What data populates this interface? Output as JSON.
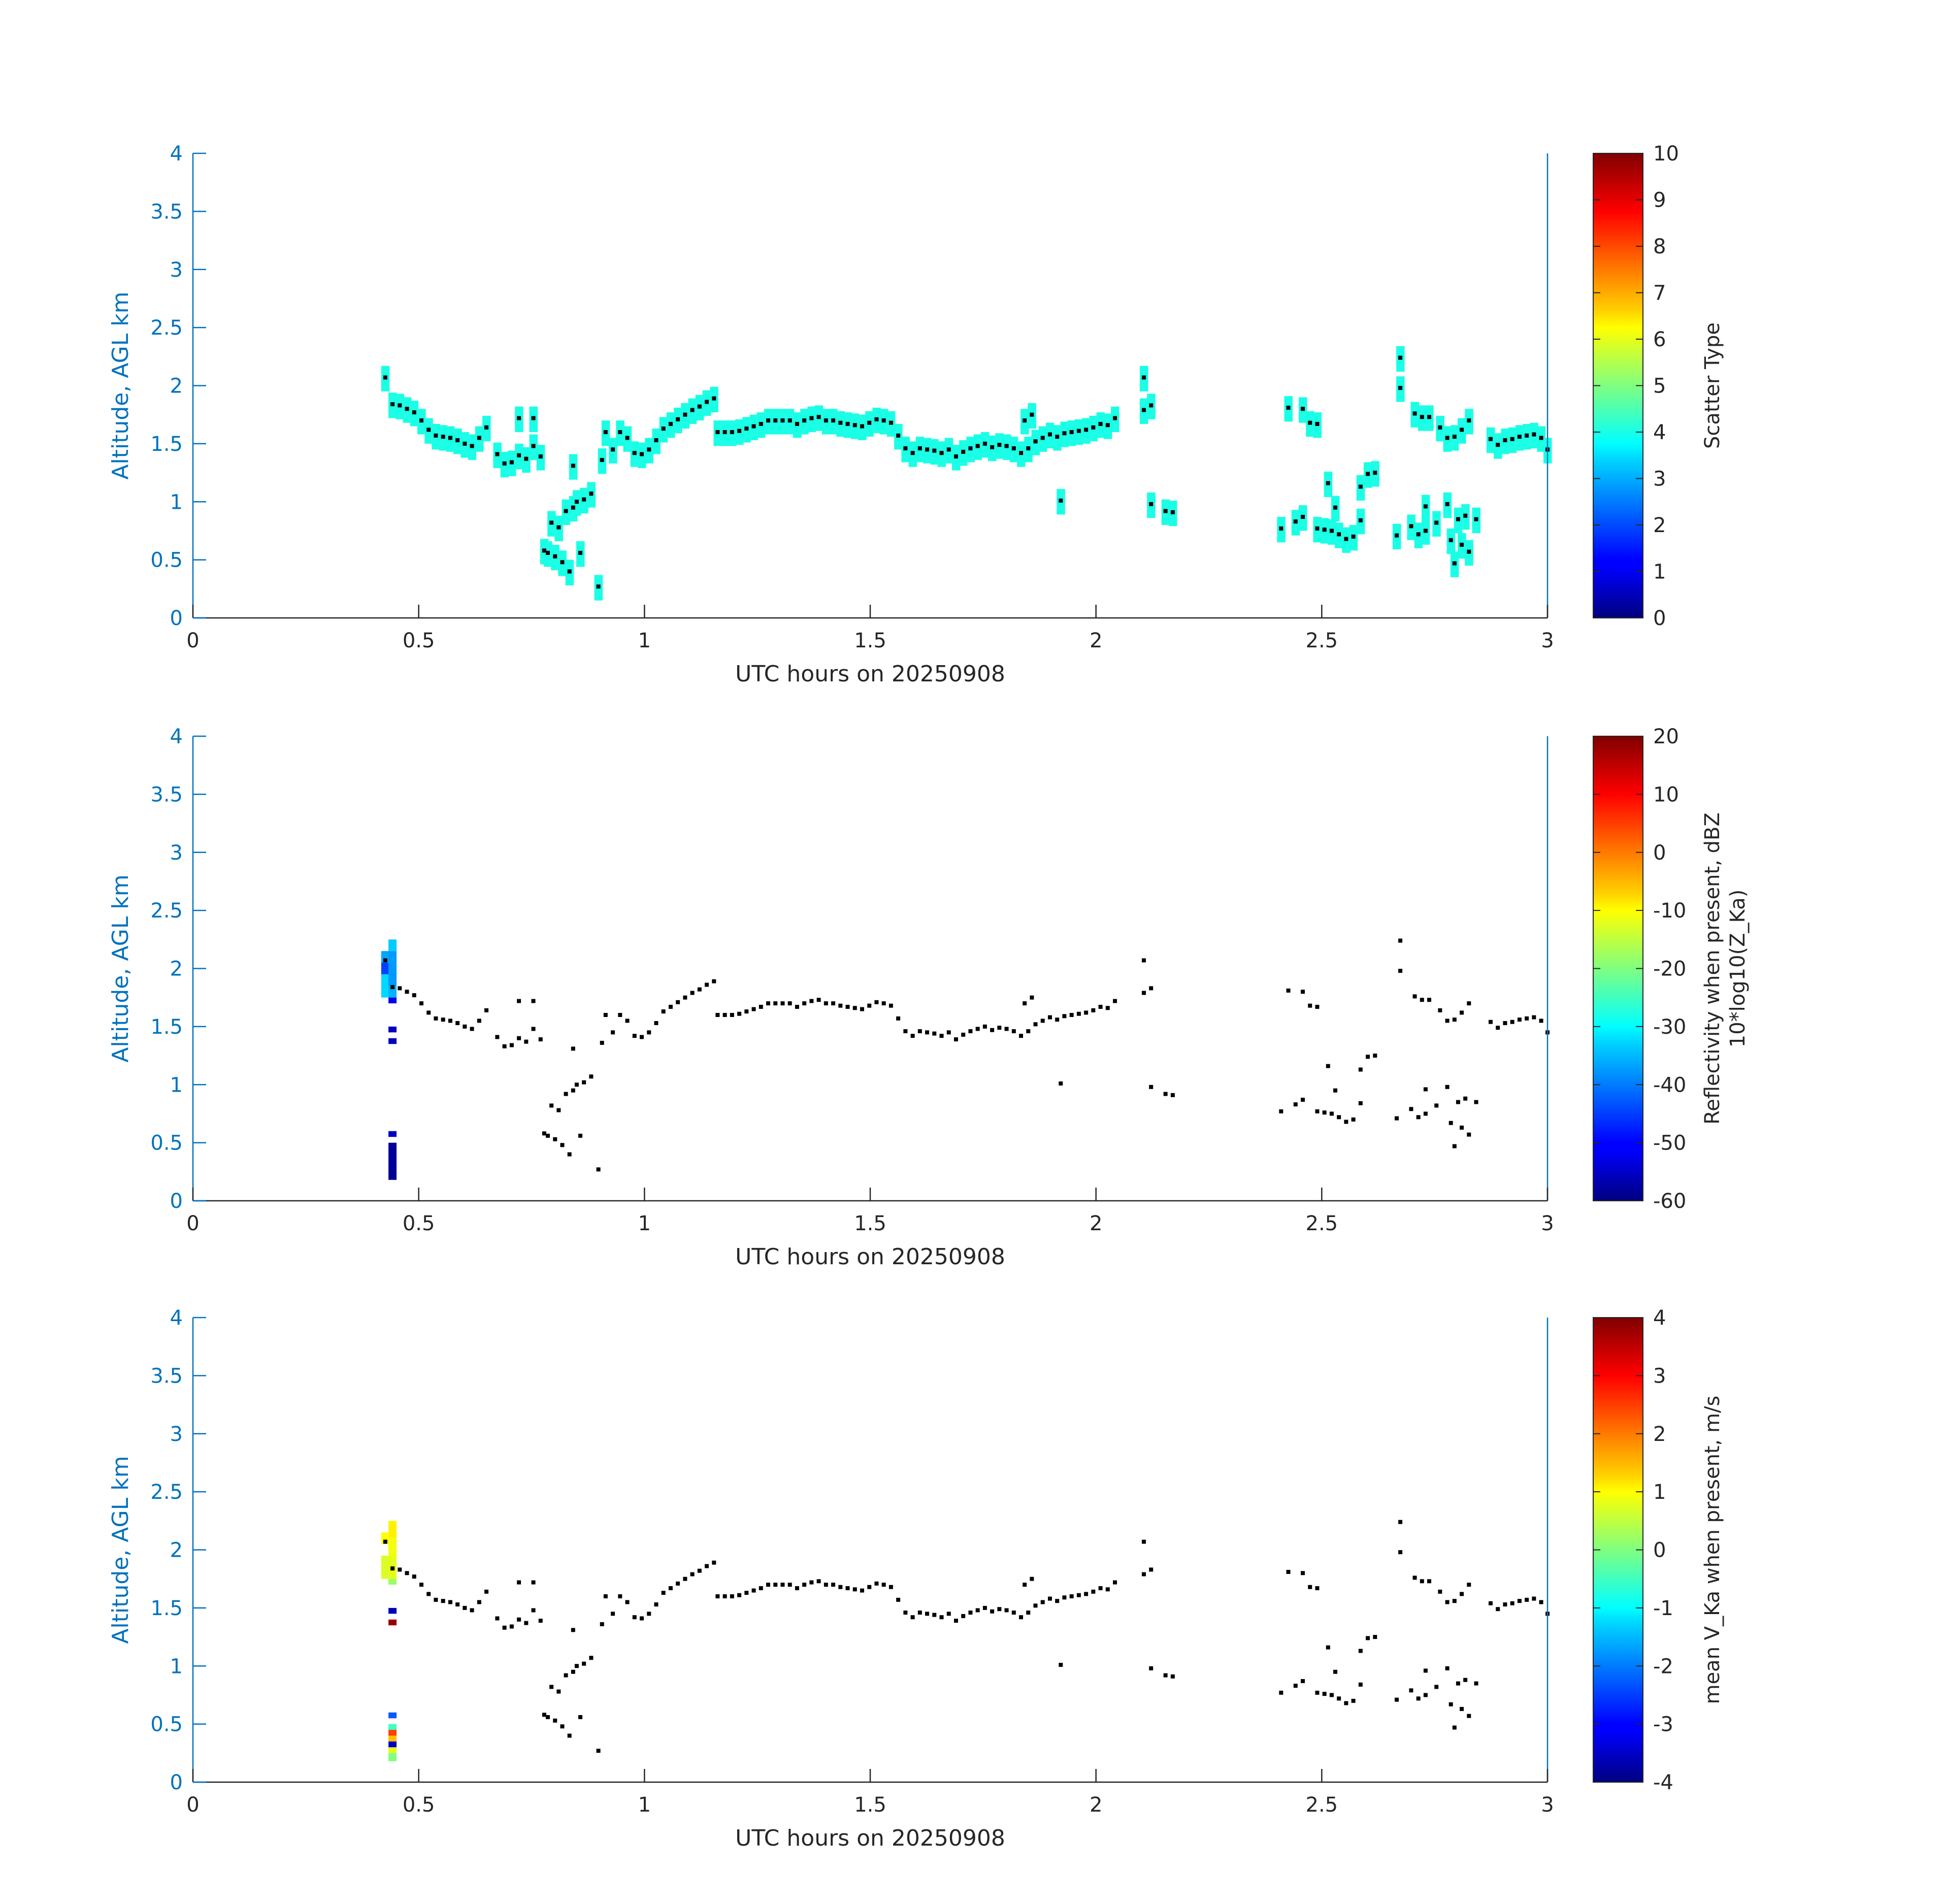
{
  "figure": {
    "background": "#ffffff",
    "axis_color": "#0072bd",
    "tick_color": "#262626"
  },
  "chart_data": [
    {
      "type": "scatter",
      "panel": "scatter-type",
      "xlabel": "UTC hours on 20250908",
      "ylabel": "Altitude, AGL km",
      "xlim": [
        0,
        3
      ],
      "ylim": [
        0,
        4
      ],
      "x_ticks": [
        0,
        0.5,
        1,
        1.5,
        2,
        2.5,
        3
      ],
      "x_tick_labels": [
        "0",
        "0.5",
        "1",
        "1.5",
        "2",
        "2.5",
        "3"
      ],
      "y_ticks": [
        0,
        0.5,
        1,
        1.5,
        2,
        2.5,
        3,
        3.5,
        4
      ],
      "y_tick_labels": [
        "0",
        "0.5",
        "1",
        "1.5",
        "2",
        "2.5",
        "3",
        "3.5",
        "4"
      ],
      "colorbar": {
        "label_lines": [
          "Scatter Type"
        ],
        "range": [
          0,
          10
        ],
        "ticks": [
          0,
          1,
          2,
          3,
          4,
          5,
          6,
          7,
          8,
          9,
          10
        ],
        "tick_labels": [
          "0",
          "1",
          "2",
          "3",
          "4",
          "5",
          "6",
          "7",
          "8",
          "9",
          "10"
        ],
        "colormap": "jet"
      },
      "fill_value": 4,
      "show_fill_bands": true,
      "cells": []
    },
    {
      "type": "scatter",
      "panel": "reflectivity",
      "xlabel": "UTC hours on 20250908",
      "ylabel": "Altitude, AGL km",
      "xlim": [
        0,
        3
      ],
      "ylim": [
        0,
        4
      ],
      "x_ticks": [
        0,
        0.5,
        1,
        1.5,
        2,
        2.5,
        3
      ],
      "x_tick_labels": [
        "0",
        "0.5",
        "1",
        "1.5",
        "2",
        "2.5",
        "3"
      ],
      "y_ticks": [
        0,
        0.5,
        1,
        1.5,
        2,
        2.5,
        3,
        3.5,
        4
      ],
      "y_tick_labels": [
        "0",
        "0.5",
        "1",
        "1.5",
        "2",
        "2.5",
        "3",
        "3.5",
        "4"
      ],
      "colorbar": {
        "label_lines": [
          "Reflectivity when present, dBZ",
          "10*log10(Z_Ka)"
        ],
        "range": [
          -60,
          20
        ],
        "ticks": [
          -60,
          -50,
          -40,
          -30,
          -20,
          -10,
          0,
          10,
          20
        ],
        "tick_labels": [
          "-60",
          "-50",
          "-40",
          "-30",
          "-20",
          "-10",
          "0",
          "10",
          "20"
        ],
        "colormap": "jet"
      },
      "show_fill_bands": false,
      "cells": [
        {
          "x": 0.426,
          "y0": 2.05,
          "y1": 2.15,
          "v": -37
        },
        {
          "x": 0.426,
          "y0": 1.95,
          "y1": 2.05,
          "v": -45
        },
        {
          "x": 0.426,
          "y0": 1.75,
          "y1": 1.95,
          "v": -33
        },
        {
          "x": 0.442,
          "y0": 2.15,
          "y1": 2.25,
          "v": -34
        },
        {
          "x": 0.442,
          "y0": 2.05,
          "y1": 2.15,
          "v": -38
        },
        {
          "x": 0.442,
          "y0": 1.85,
          "y1": 2.05,
          "v": -38
        },
        {
          "x": 0.442,
          "y0": 1.75,
          "y1": 1.85,
          "v": -36
        },
        {
          "x": 0.442,
          "y0": 1.7,
          "y1": 1.75,
          "v": -52
        },
        {
          "x": 0.442,
          "y0": 1.45,
          "y1": 1.5,
          "v": -55
        },
        {
          "x": 0.442,
          "y0": 1.35,
          "y1": 1.4,
          "v": -55
        },
        {
          "x": 0.442,
          "y0": 0.55,
          "y1": 0.6,
          "v": -55
        },
        {
          "x": 0.442,
          "y0": 0.18,
          "y1": 0.5,
          "v": -58
        }
      ]
    },
    {
      "type": "scatter",
      "panel": "velocity",
      "xlabel": "UTC hours on 20250908",
      "ylabel": "Altitude, AGL km",
      "xlim": [
        0,
        3
      ],
      "ylim": [
        0,
        4
      ],
      "x_ticks": [
        0,
        0.5,
        1,
        1.5,
        2,
        2.5,
        3
      ],
      "x_tick_labels": [
        "0",
        "0.5",
        "1",
        "1.5",
        "2",
        "2.5",
        "3"
      ],
      "y_ticks": [
        0,
        0.5,
        1,
        1.5,
        2,
        2.5,
        3,
        3.5,
        4
      ],
      "y_tick_labels": [
        "0",
        "0.5",
        "1",
        "1.5",
        "2",
        "2.5",
        "3",
        "3.5",
        "4"
      ],
      "colorbar": {
        "label_lines": [
          "mean V_Ka when present, m/s"
        ],
        "range": [
          -4,
          4
        ],
        "ticks": [
          -4,
          -3,
          -2,
          -1,
          0,
          1,
          2,
          3,
          4
        ],
        "tick_labels": [
          "-4",
          "-3",
          "-2",
          "-1",
          "0",
          "1",
          "2",
          "3",
          "4"
        ],
        "colormap": "jet"
      },
      "show_fill_bands": false,
      "cells": [
        {
          "x": 0.426,
          "y0": 2.05,
          "y1": 2.15,
          "v": 1.0
        },
        {
          "x": 0.426,
          "y0": 1.75,
          "y1": 1.95,
          "v": 0.7
        },
        {
          "x": 0.442,
          "y0": 2.1,
          "y1": 2.25,
          "v": 1.1
        },
        {
          "x": 0.442,
          "y0": 1.95,
          "y1": 2.1,
          "v": 0.9
        },
        {
          "x": 0.442,
          "y0": 1.75,
          "y1": 1.95,
          "v": 0.8
        },
        {
          "x": 0.442,
          "y0": 1.7,
          "y1": 1.75,
          "v": 0.2
        },
        {
          "x": 0.442,
          "y0": 1.45,
          "y1": 1.5,
          "v": -3.6
        },
        {
          "x": 0.442,
          "y0": 1.35,
          "y1": 1.4,
          "v": 3.8
        },
        {
          "x": 0.442,
          "y0": 0.55,
          "y1": 0.6,
          "v": -2.3
        },
        {
          "x": 0.442,
          "y0": 0.45,
          "y1": 0.5,
          "v": -0.5
        },
        {
          "x": 0.442,
          "y0": 0.4,
          "y1": 0.45,
          "v": 2.5
        },
        {
          "x": 0.442,
          "y0": 0.35,
          "y1": 0.4,
          "v": 1.5
        },
        {
          "x": 0.442,
          "y0": 0.3,
          "y1": 0.35,
          "v": -3.5
        },
        {
          "x": 0.442,
          "y0": 0.25,
          "y1": 0.3,
          "v": 0.8
        },
        {
          "x": 0.442,
          "y0": 0.18,
          "y1": 0.25,
          "v": 0.0
        }
      ]
    }
  ],
  "cloud_base_points": [
    [
      0.426,
      2.07
    ],
    [
      0.442,
      1.84
    ],
    [
      0.458,
      1.83
    ],
    [
      0.474,
      1.8
    ],
    [
      0.49,
      1.77
    ],
    [
      0.506,
      1.7
    ],
    [
      0.522,
      1.62
    ],
    [
      0.538,
      1.57
    ],
    [
      0.554,
      1.56
    ],
    [
      0.57,
      1.55
    ],
    [
      0.586,
      1.53
    ],
    [
      0.602,
      1.5
    ],
    [
      0.618,
      1.48
    ],
    [
      0.634,
      1.55
    ],
    [
      0.65,
      1.64
    ],
    [
      0.674,
      1.41
    ],
    [
      0.69,
      1.33
    ],
    [
      0.706,
      1.34
    ],
    [
      0.722,
      1.4
    ],
    [
      0.722,
      1.72
    ],
    [
      0.738,
      1.37
    ],
    [
      0.754,
      1.48
    ],
    [
      0.754,
      1.72
    ],
    [
      0.77,
      1.39
    ],
    [
      0.778,
      0.58
    ],
    [
      0.786,
      0.56
    ],
    [
      0.794,
      0.82
    ],
    [
      0.802,
      0.53
    ],
    [
      0.81,
      0.78
    ],
    [
      0.818,
      0.48
    ],
    [
      0.826,
      0.92
    ],
    [
      0.834,
      0.4
    ],
    [
      0.842,
      0.95
    ],
    [
      0.842,
      1.31
    ],
    [
      0.85,
      1.0
    ],
    [
      0.858,
      0.56
    ],
    [
      0.866,
      1.02
    ],
    [
      0.882,
      1.07
    ],
    [
      0.898,
      0.27
    ],
    [
      0.906,
      1.36
    ],
    [
      0.914,
      1.6
    ],
    [
      0.93,
      1.45
    ],
    [
      0.946,
      1.6
    ],
    [
      0.962,
      1.55
    ],
    [
      0.978,
      1.42
    ],
    [
      0.994,
      1.41
    ],
    [
      1.01,
      1.45
    ],
    [
      1.026,
      1.53
    ],
    [
      1.042,
      1.63
    ],
    [
      1.058,
      1.67
    ],
    [
      1.074,
      1.71
    ],
    [
      1.09,
      1.75
    ],
    [
      1.106,
      1.79
    ],
    [
      1.122,
      1.82
    ],
    [
      1.138,
      1.86
    ],
    [
      1.154,
      1.89
    ],
    [
      1.162,
      1.6
    ],
    [
      1.178,
      1.6
    ],
    [
      1.194,
      1.6
    ],
    [
      1.21,
      1.61
    ],
    [
      1.226,
      1.63
    ],
    [
      1.242,
      1.65
    ],
    [
      1.258,
      1.67
    ],
    [
      1.274,
      1.7
    ],
    [
      1.29,
      1.7
    ],
    [
      1.306,
      1.7
    ],
    [
      1.322,
      1.7
    ],
    [
      1.338,
      1.67
    ],
    [
      1.354,
      1.7
    ],
    [
      1.37,
      1.72
    ],
    [
      1.386,
      1.73
    ],
    [
      1.402,
      1.7
    ],
    [
      1.418,
      1.7
    ],
    [
      1.434,
      1.68
    ],
    [
      1.45,
      1.67
    ],
    [
      1.466,
      1.66
    ],
    [
      1.482,
      1.65
    ],
    [
      1.498,
      1.68
    ],
    [
      1.514,
      1.71
    ],
    [
      1.53,
      1.7
    ],
    [
      1.546,
      1.68
    ],
    [
      1.562,
      1.57
    ],
    [
      1.578,
      1.46
    ],
    [
      1.594,
      1.42
    ],
    [
      1.61,
      1.46
    ],
    [
      1.626,
      1.45
    ],
    [
      1.642,
      1.44
    ],
    [
      1.658,
      1.42
    ],
    [
      1.674,
      1.45
    ],
    [
      1.69,
      1.39
    ],
    [
      1.706,
      1.43
    ],
    [
      1.722,
      1.46
    ],
    [
      1.738,
      1.48
    ],
    [
      1.754,
      1.5
    ],
    [
      1.77,
      1.47
    ],
    [
      1.786,
      1.49
    ],
    [
      1.802,
      1.48
    ],
    [
      1.818,
      1.46
    ],
    [
      1.834,
      1.42
    ],
    [
      1.842,
      1.7
    ],
    [
      1.85,
      1.46
    ],
    [
      1.858,
      1.75
    ],
    [
      1.866,
      1.52
    ],
    [
      1.882,
      1.55
    ],
    [
      1.898,
      1.58
    ],
    [
      1.914,
      1.56
    ],
    [
      1.922,
      1.01
    ],
    [
      1.93,
      1.59
    ],
    [
      1.946,
      1.6
    ],
    [
      1.962,
      1.61
    ],
    [
      1.978,
      1.62
    ],
    [
      1.994,
      1.64
    ],
    [
      2.01,
      1.67
    ],
    [
      2.026,
      1.66
    ],
    [
      2.042,
      1.72
    ],
    [
      2.106,
      2.07
    ],
    [
      2.106,
      1.79
    ],
    [
      2.122,
      1.83
    ],
    [
      2.122,
      0.98
    ],
    [
      2.154,
      0.92
    ],
    [
      2.17,
      0.91
    ],
    [
      2.41,
      0.77
    ],
    [
      2.426,
      1.81
    ],
    [
      2.442,
      0.83
    ],
    [
      2.458,
      1.8
    ],
    [
      2.458,
      0.87
    ],
    [
      2.474,
      1.68
    ],
    [
      2.49,
      0.77
    ],
    [
      2.49,
      1.67
    ],
    [
      2.506,
      0.76
    ],
    [
      2.514,
      1.16
    ],
    [
      2.522,
      0.75
    ],
    [
      2.53,
      0.95
    ],
    [
      2.538,
      0.72
    ],
    [
      2.554,
      0.68
    ],
    [
      2.57,
      0.7
    ],
    [
      2.586,
      0.84
    ],
    [
      2.586,
      1.13
    ],
    [
      2.602,
      1.24
    ],
    [
      2.618,
      1.25
    ],
    [
      2.666,
      0.71
    ],
    [
      2.674,
      2.24
    ],
    [
      2.674,
      1.98
    ],
    [
      2.698,
      0.79
    ],
    [
      2.706,
      1.76
    ],
    [
      2.714,
      0.72
    ],
    [
      2.722,
      1.73
    ],
    [
      2.73,
      0.96
    ],
    [
      2.73,
      0.75
    ],
    [
      2.738,
      1.73
    ],
    [
      2.754,
      0.82
    ],
    [
      2.762,
      1.64
    ],
    [
      2.778,
      1.55
    ],
    [
      2.778,
      0.98
    ],
    [
      2.786,
      0.67
    ],
    [
      2.794,
      1.56
    ],
    [
      2.794,
      0.47
    ],
    [
      2.802,
      0.85
    ],
    [
      2.81,
      1.62
    ],
    [
      2.81,
      0.63
    ],
    [
      2.818,
      0.88
    ],
    [
      2.826,
      0.57
    ],
    [
      2.826,
      1.7
    ],
    [
      2.842,
      0.85
    ],
    [
      2.874,
      1.54
    ],
    [
      2.89,
      1.49
    ],
    [
      2.906,
      1.53
    ],
    [
      2.922,
      1.54
    ],
    [
      2.938,
      1.56
    ],
    [
      2.954,
      1.57
    ],
    [
      2.97,
      1.58
    ],
    [
      2.986,
      1.55
    ],
    [
      3.0,
      1.45
    ]
  ]
}
